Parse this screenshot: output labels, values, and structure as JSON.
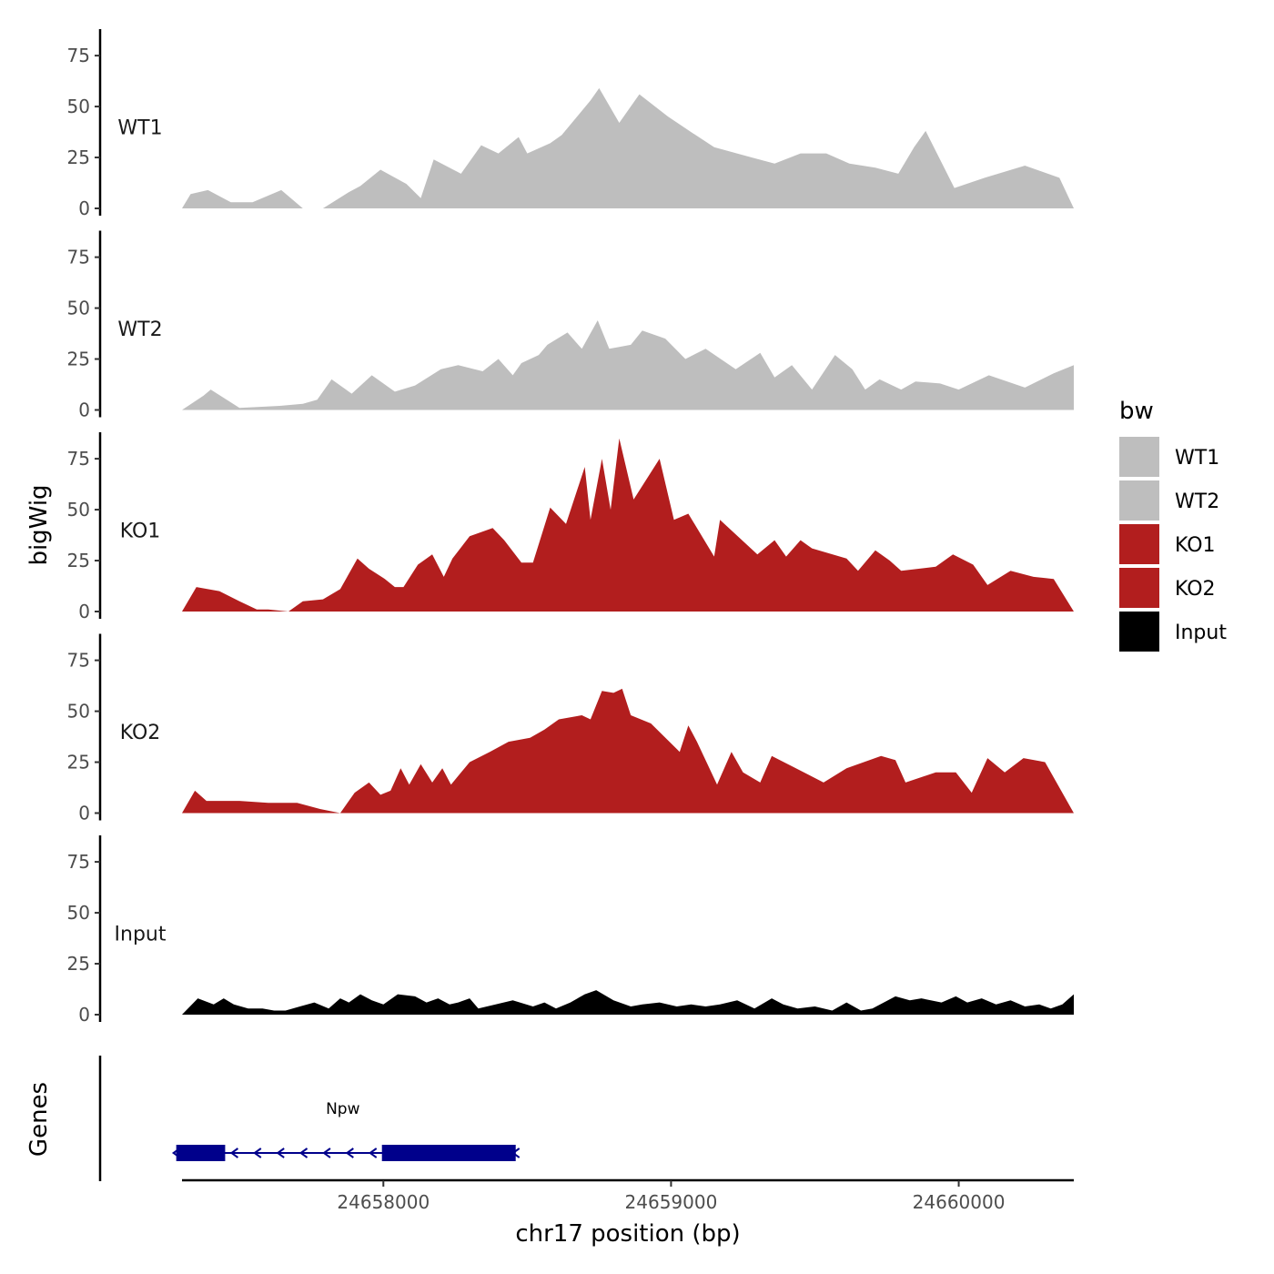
{
  "chart_data": {
    "type": "area",
    "xlabel": "chr17 position (bp)",
    "ylabel": "bigWig",
    "gene_track_label": "Genes",
    "x_range": [
      24657300,
      24660400
    ],
    "x_ticks": [
      {
        "value": 24658000,
        "label": "24658000"
      },
      {
        "value": 24659000,
        "label": "24659000"
      },
      {
        "value": 24660000,
        "label": "24660000"
      }
    ],
    "y_range": [
      0,
      88
    ],
    "y_ticks": [
      {
        "value": 0,
        "label": "0"
      },
      {
        "value": 25,
        "label": "25"
      },
      {
        "value": 50,
        "label": "50"
      },
      {
        "value": 75,
        "label": "75"
      }
    ],
    "legend": {
      "title": "bw",
      "position": "right",
      "entries": [
        {
          "label": "WT1",
          "color": "#BEBEBE"
        },
        {
          "label": "WT2",
          "color": "#BEBEBE"
        },
        {
          "label": "KO1",
          "color": "#B21E1E"
        },
        {
          "label": "KO2",
          "color": "#B21E1E"
        },
        {
          "label": "Input",
          "color": "#000000"
        }
      ]
    },
    "series": [
      {
        "name": "WT1",
        "color": "#BEBEBE",
        "x": [
          24657300,
          24657330,
          24657390,
          24657470,
          24657545,
          24657645,
          24657720,
          24657790,
          24657880,
          24657920,
          24657990,
          24658080,
          24658130,
          24658175,
          24658270,
          24658340,
          24658400,
          24658470,
          24658500,
          24658580,
          24658620,
          24658720,
          24658750,
          24658820,
          24658890,
          24658990,
          24659075,
          24659150,
          24659280,
          24659360,
          24659450,
          24659540,
          24659620,
          24659710,
          24659790,
          24659845,
          24659885,
          24659985,
          24660090,
          24660230,
          24660350,
          24660400
        ],
        "y": [
          0,
          7,
          9,
          3,
          3,
          9,
          0,
          0,
          8,
          11,
          19,
          12,
          5,
          24,
          17,
          31,
          27,
          35,
          27,
          32,
          36,
          53,
          59,
          42,
          56,
          45,
          37,
          30,
          25,
          22,
          27,
          27,
          22,
          20,
          17,
          30,
          38,
          10,
          15,
          21,
          15,
          0
        ]
      },
      {
        "name": "WT2",
        "color": "#BEBEBE",
        "x": [
          24657300,
          24657375,
          24657400,
          24657500,
          24657640,
          24657720,
          24657770,
          24657820,
          24657890,
          24657960,
          24658040,
          24658110,
          24658200,
          24658260,
          24658345,
          24658400,
          24658450,
          24658480,
          24658540,
          24658570,
          24658640,
          24658690,
          24658745,
          24658785,
          24658860,
          24658900,
          24658980,
          24659050,
          24659120,
          24659225,
          24659310,
          24659360,
          24659420,
          24659490,
          24659570,
          24659630,
          24659675,
          24659725,
          24659800,
          24659850,
          24659935,
          24660000,
          24660105,
          24660230,
          24660330,
          24660400
        ],
        "y": [
          0,
          7,
          10,
          1,
          2,
          3,
          5,
          15,
          8,
          17,
          9,
          12,
          20,
          22,
          19,
          25,
          17,
          23,
          27,
          32,
          38,
          30,
          44,
          30,
          32,
          39,
          35,
          25,
          30,
          20,
          28,
          16,
          22,
          10,
          27,
          20,
          10,
          15,
          10,
          14,
          13,
          10,
          17,
          11,
          18,
          22
        ]
      },
      {
        "name": "KO1",
        "color": "#B21E1E",
        "x": [
          24657300,
          24657350,
          24657430,
          24657500,
          24657560,
          24657600,
          24657670,
          24657720,
          24657790,
          24657850,
          24657910,
          24657950,
          24658005,
          24658040,
          24658070,
          24658120,
          24658170,
          24658210,
          24658240,
          24658300,
          24658380,
          24658420,
          24658480,
          24658520,
          24658580,
          24658635,
          24658700,
          24658720,
          24658760,
          24658790,
          24658820,
          24658870,
          24658960,
          24659010,
          24659060,
          24659150,
          24659170,
          24659300,
          24659360,
          24659400,
          24659450,
          24659490,
          24659610,
          24659650,
          24659710,
          24659760,
          24659800,
          24659920,
          24659980,
          24660050,
          24660100,
          24660180,
          24660260,
          24660330,
          24660400
        ],
        "y": [
          0,
          12,
          10,
          5,
          1,
          1,
          0,
          5,
          6,
          11,
          26,
          21,
          16,
          12,
          12,
          23,
          28,
          17,
          26,
          37,
          41,
          35,
          24,
          24,
          51,
          43,
          71,
          45,
          75,
          50,
          85,
          55,
          75,
          45,
          48,
          27,
          45,
          28,
          35,
          27,
          35,
          31,
          26,
          20,
          30,
          25,
          20,
          22,
          28,
          23,
          13,
          20,
          17,
          16,
          0
        ]
      },
      {
        "name": "KO2",
        "color": "#B21E1E",
        "x": [
          24657300,
          24657345,
          24657385,
          24657500,
          24657600,
          24657700,
          24657780,
          24657850,
          24657900,
          24657950,
          24657990,
          24658025,
          24658060,
          24658090,
          24658130,
          24658170,
          24658205,
          24658235,
          24658300,
          24658370,
          24658435,
          24658510,
          24658560,
          24658610,
          24658690,
          24658720,
          24658760,
          24658800,
          24658830,
          24658860,
          24658930,
          24659030,
          24659060,
          24659090,
          24659160,
          24659210,
          24659250,
          24659310,
          24659350,
          24659420,
          24659530,
          24659610,
          24659730,
          24659780,
          24659815,
          24659920,
          24659990,
          24660045,
          24660100,
          24660160,
          24660225,
          24660300,
          24660400
        ],
        "y": [
          0,
          11,
          6,
          6,
          5,
          5,
          2,
          0,
          10,
          15,
          9,
          11,
          22,
          14,
          24,
          15,
          22,
          14,
          25,
          30,
          35,
          37,
          41,
          46,
          48,
          46,
          60,
          59,
          61,
          48,
          44,
          30,
          43,
          35,
          14,
          30,
          20,
          15,
          28,
          23,
          15,
          22,
          28,
          26,
          15,
          20,
          20,
          10,
          27,
          20,
          27,
          25,
          0
        ]
      },
      {
        "name": "Input",
        "color": "#000000",
        "x": [
          24657300,
          24657355,
          24657410,
          24657445,
          24657480,
          24657530,
          24657580,
          24657620,
          24657660,
          24657710,
          24657760,
          24657810,
          24657850,
          24657880,
          24657920,
          24657960,
          24658000,
          24658050,
          24658110,
          24658150,
          24658190,
          24658230,
          24658260,
          24658300,
          24658330,
          24658390,
          24658450,
          24658520,
          24658560,
          24658600,
          24658650,
          24658700,
          24658740,
          24658800,
          24658860,
          24658900,
          24658960,
          24659020,
          24659070,
          24659120,
          24659170,
          24659230,
          24659290,
          24659350,
          24659390,
          24659440,
          24659500,
          24659560,
          24659610,
          24659660,
          24659700,
          24659780,
          24659830,
          24659870,
          24659940,
          24659990,
          24660030,
          24660080,
          24660130,
          24660180,
          24660230,
          24660280,
          24660320,
          24660360,
          24660400
        ],
        "y": [
          0,
          8,
          5,
          8,
          5,
          3,
          3,
          2,
          2,
          4,
          6,
          3,
          8,
          6,
          10,
          7,
          5,
          10,
          9,
          6,
          8,
          5,
          6,
          8,
          3,
          5,
          7,
          4,
          6,
          3,
          6,
          10,
          12,
          7,
          4,
          5,
          6,
          4,
          5,
          4,
          5,
          7,
          3,
          8,
          5,
          3,
          4,
          2,
          6,
          2,
          3,
          9,
          7,
          8,
          6,
          9,
          6,
          8,
          5,
          7,
          4,
          5,
          3,
          5,
          10
        ]
      }
    ],
    "genes": [
      {
        "name": "Npw",
        "color": "#00008B",
        "strand": "-",
        "start": 24657280,
        "end": 24658460,
        "exons": [
          [
            24657280,
            24657450
          ],
          [
            24657995,
            24658460
          ]
        ]
      }
    ]
  }
}
